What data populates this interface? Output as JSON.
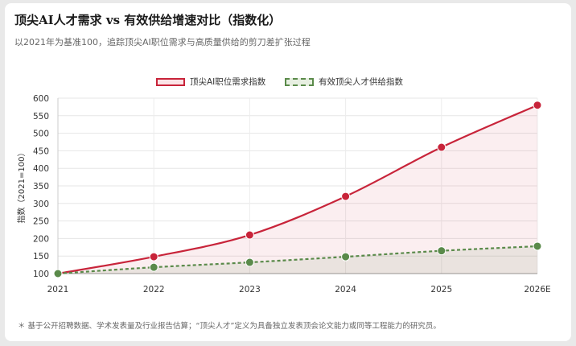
{
  "title": "顶尖AI人才需求 vs 有效供给增速对比（指数化）",
  "subtitle": "以2021年为基准100，追踪顶尖AI职位需求与高质量供给的剪刀差扩张过程",
  "footnote": "＊ 基于公开招聘数据、学术发表量及行业报告估算；“顶尖人才”定义为具备独立发表顶会论文能力或同等工程能力的研究员。",
  "colors": {
    "demand": "#c8243a",
    "supply": "#5a8a4a"
  },
  "chart_data": {
    "type": "line",
    "categories": [
      "2021",
      "2022",
      "2023",
      "2024",
      "2025",
      "2026E"
    ],
    "series": [
      {
        "name": "顶尖AI职位需求指数",
        "values": [
          100,
          148,
          210,
          320,
          460,
          580
        ]
      },
      {
        "name": "有效顶尖人才供给指数",
        "values": [
          100,
          118,
          132,
          148,
          165,
          178
        ]
      }
    ],
    "ylabel": "指数（2021=100）",
    "ylim": [
      100,
      600
    ],
    "yticks": [
      100,
      150,
      200,
      250,
      300,
      350,
      400,
      450,
      500,
      550,
      600
    ],
    "grid": true,
    "legend": "top-center"
  }
}
